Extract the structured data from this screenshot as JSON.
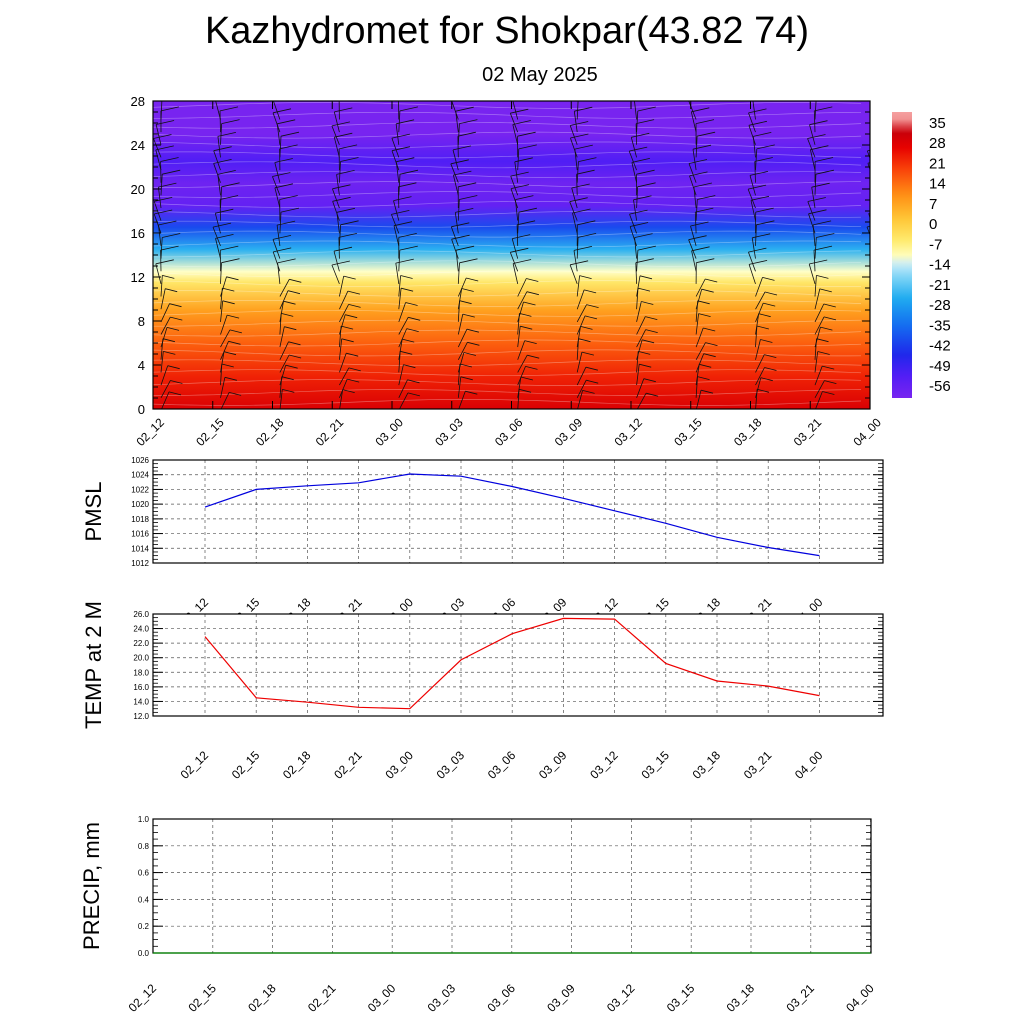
{
  "header": {
    "title": "Kazhydromet for Shokpar(43.82 74)",
    "subtitle": "02 May 2025"
  },
  "chart_data": [
    {
      "type": "heatmap",
      "title": "",
      "xlabel": "",
      "ylabel": "",
      "categories": [
        "02_12",
        "02_15",
        "02_18",
        "02_21",
        "03_00",
        "03_03",
        "03_06",
        "03_09",
        "03_12",
        "03_15",
        "03_18",
        "03_21",
        "04_00"
      ],
      "y_ticks": [
        "0",
        "4",
        "8",
        "12",
        "16",
        "20",
        "24",
        "28"
      ],
      "ylim": [
        0,
        28
      ],
      "colorbar_labels": [
        "35",
        "28",
        "21",
        "14",
        "7",
        "0",
        "-7",
        "-14",
        "-21",
        "-28",
        "-35",
        "-42",
        "-49",
        "-56"
      ],
      "colorbar_range": [
        -60,
        38
      ],
      "values": [
        {
          "height": 0,
          "temp": 28
        },
        {
          "height": 3,
          "temp": 22
        },
        {
          "height": 6,
          "temp": 15
        },
        {
          "height": 9,
          "temp": 7
        },
        {
          "height": 11.5,
          "temp": -5
        },
        {
          "height": 12.5,
          "temp": -12
        },
        {
          "height": 14.5,
          "temp": -25
        },
        {
          "height": 16.5,
          "temp": -40
        },
        {
          "height": 18.5,
          "temp": -56
        },
        {
          "height": 20.5,
          "temp": -58
        },
        {
          "height": 22.5,
          "temp": -52
        },
        {
          "height": 25,
          "temp": -60
        },
        {
          "height": 28,
          "temp": -60
        }
      ],
      "wind_barbs": true,
      "colors": {
        "cold": "#7b2cf0",
        "freezing": "#ffffc0",
        "hot": "#e80000"
      }
    },
    {
      "type": "line",
      "ylabel": "PMSL",
      "categories": [
        "02_12",
        "02_15",
        "02_18",
        "02_21",
        "03_00",
        "03_03",
        "03_06",
        "03_09",
        "03_12",
        "03_15",
        "03_18",
        "03_21",
        "04_00"
      ],
      "y_ticks": [
        "1012",
        "1014",
        "1016",
        "1018",
        "1020",
        "1022",
        "1024",
        "1026"
      ],
      "ylim": [
        1012,
        1026
      ],
      "series": [
        {
          "values": [
            1019.6,
            1022.0,
            1022.5,
            1022.9,
            1024.1,
            1023.8,
            1022.4,
            1020.8,
            1019.1,
            1017.4,
            1015.5,
            1014.1,
            1013.0
          ]
        }
      ],
      "grid": true,
      "color": "#0000dd"
    },
    {
      "type": "line",
      "ylabel": "TEMP at 2 M",
      "categories": [
        "02_12",
        "02_15",
        "02_18",
        "02_21",
        "03_00",
        "03_03",
        "03_06",
        "03_09",
        "03_12",
        "03_15",
        "03_18",
        "03_21",
        "04_00"
      ],
      "y_ticks": [
        "12.0",
        "14.0",
        "16.0",
        "18.0",
        "20.0",
        "22.0",
        "24.0",
        "26.0"
      ],
      "ylim": [
        12,
        26
      ],
      "series": [
        {
          "values": [
            22.9,
            14.5,
            13.9,
            13.2,
            13.0,
            19.7,
            23.3,
            25.4,
            25.3,
            19.2,
            16.8,
            16.1,
            14.8
          ]
        }
      ],
      "grid": true,
      "color": "#ee0000"
    },
    {
      "type": "line",
      "ylabel": "PRECIP, mm",
      "categories": [
        "02_12",
        "02_15",
        "02_18",
        "02_21",
        "03_00",
        "03_03",
        "03_06",
        "03_09",
        "03_12",
        "03_15",
        "03_18",
        "03_21",
        "04_00"
      ],
      "y_ticks": [
        "0.0",
        "0.2",
        "0.4",
        "0.6",
        "0.8",
        "1.0"
      ],
      "ylim": [
        0,
        1
      ],
      "series": [
        {
          "values": [
            0,
            0,
            0,
            0,
            0,
            0,
            0,
            0,
            0,
            0,
            0,
            0,
            0
          ]
        }
      ],
      "grid": true,
      "color": "#008800"
    }
  ]
}
